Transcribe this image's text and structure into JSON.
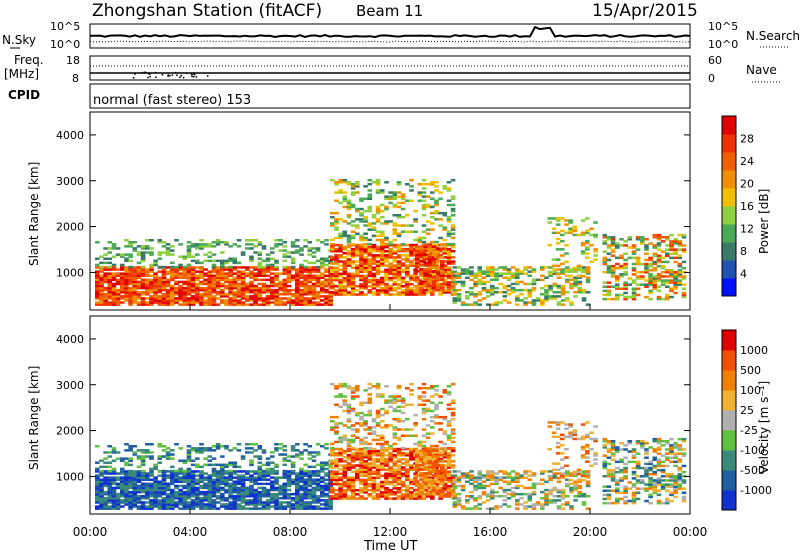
{
  "header": {
    "station": "Zhongshan Station (fitACF)",
    "beam": "Beam 11",
    "date": "15/Apr/2015"
  },
  "left_labels": {
    "nsky": "N.Sky",
    "freq_top": "Freq.",
    "freq_unit": "[MHz]",
    "cpid": "CPID"
  },
  "right_labels": {
    "nsearch": "N.Search",
    "nave": "Nave"
  },
  "ticks": {
    "noise_hi": "10^5",
    "noise_lo": "10^0",
    "freq_hi": "18",
    "freq_lo": "8",
    "nave_hi": "60",
    "nave_lo": "0"
  },
  "cpid_text": "normal (fast stereo) 153",
  "chart_data": [
    {
      "type": "heatmap",
      "name": "power",
      "ylabel": "Slant Range [km]",
      "xlabel": "Time UT",
      "xlim": [
        0,
        24
      ],
      "ylim": [
        180,
        4500
      ],
      "yticks": [
        "1000",
        "2000",
        "3000",
        "4000"
      ],
      "xticks": [
        "00:00",
        "04:00",
        "08:00",
        "12:00",
        "16:00",
        "20:00",
        "00:00"
      ],
      "colorbar": {
        "label": "Power [dB]",
        "ticks": [
          "4",
          "8",
          "12",
          "16",
          "20",
          "24",
          "28"
        ],
        "colors": [
          "#0010ff",
          "#2050b0",
          "#3a7a6a",
          "#4aaa55",
          "#8fd040",
          "#f0c000",
          "#f09000",
          "#f06000",
          "#f03000",
          "#e00000"
        ]
      }
    },
    {
      "type": "heatmap",
      "name": "velocity",
      "ylabel": "Slant Range [km]",
      "xlabel": "Time UT",
      "xlim": [
        0,
        24
      ],
      "ylim": [
        180,
        4500
      ],
      "yticks": [
        "1000",
        "2000",
        "3000",
        "4000"
      ],
      "xticks": [
        "00:00",
        "04:00",
        "08:00",
        "12:00",
        "16:00",
        "20:00",
        "00:00"
      ],
      "colorbar": {
        "label": "Velocity [m s⁻¹]",
        "ticks": [
          "1000",
          "500",
          "100",
          "25",
          "-25",
          "-100",
          "-500",
          "-1000"
        ],
        "colors": [
          "#1030d0",
          "#2060a0",
          "#3a8a7a",
          "#60c040",
          "#b0b0b0",
          "#f0b030",
          "#f08000",
          "#f05000",
          "#e00000"
        ]
      }
    }
  ]
}
